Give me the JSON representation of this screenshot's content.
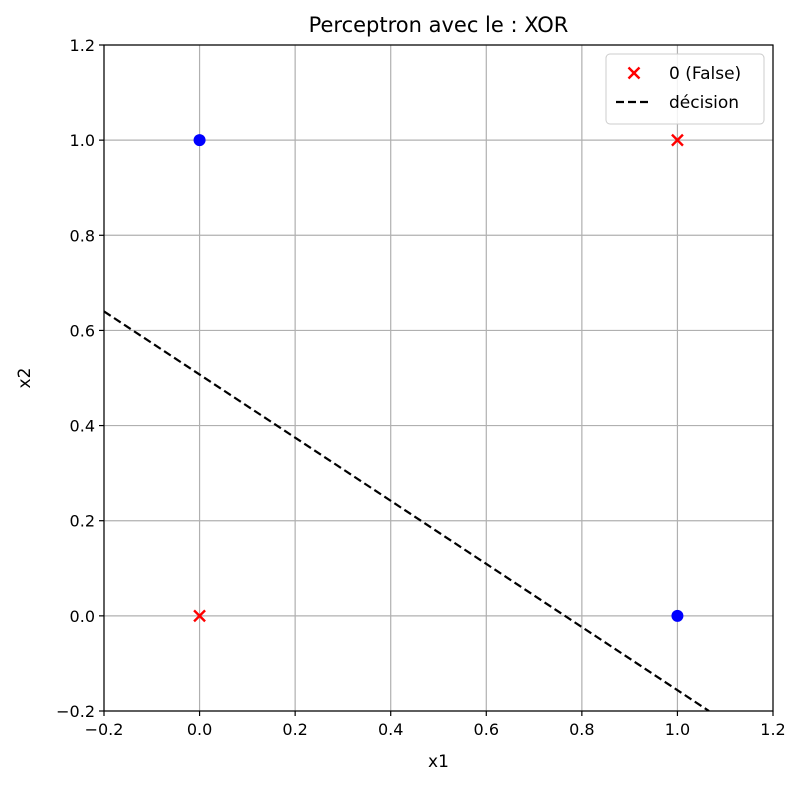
{
  "chart_data": {
    "type": "scatter",
    "title": "Perceptron avec le : XOR",
    "xlabel": "x1",
    "ylabel": "x2",
    "xlim": [
      -0.2,
      1.2
    ],
    "ylim": [
      -0.2,
      1.2
    ],
    "xticks": [
      -0.2,
      0.0,
      0.2,
      0.4,
      0.6,
      0.8,
      1.0,
      1.2
    ],
    "yticks": [
      -0.2,
      0.0,
      0.2,
      0.4,
      0.6,
      0.8,
      1.0,
      1.2
    ],
    "grid": true,
    "legend_position": "top-right",
    "series": [
      {
        "name": "",
        "marker": "circle",
        "color": "#0000ff",
        "points": [
          [
            0,
            1
          ],
          [
            1,
            0
          ]
        ]
      },
      {
        "name": "0 (False)",
        "marker": "x",
        "color": "#ff0000",
        "points": [
          [
            0,
            0
          ],
          [
            1,
            1
          ]
        ]
      }
    ],
    "lines": [
      {
        "name": "décision",
        "style": "dashed",
        "color": "#000000",
        "points": [
          [
            -0.2,
            0.64
          ],
          [
            1.066,
            -0.2
          ]
        ]
      }
    ]
  }
}
